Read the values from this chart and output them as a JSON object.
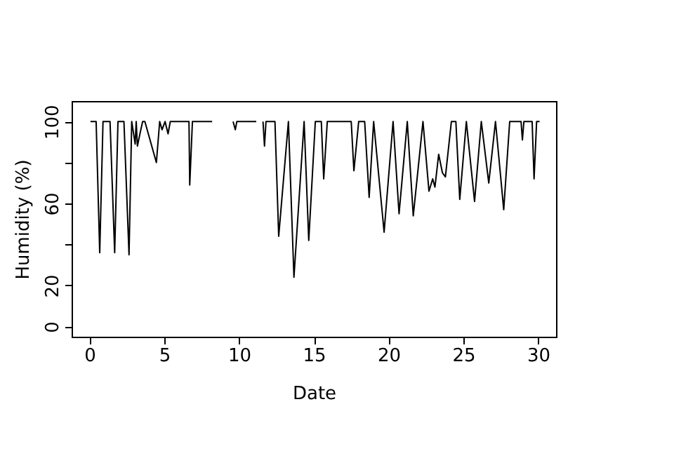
{
  "chart_data": {
    "type": "line",
    "xlabel": "Date",
    "ylabel": "Humidity (%)",
    "x": [
      0.06,
      0.44,
      0.68,
      0.9,
      1.37,
      1.68,
      1.9,
      2.3,
      2.64,
      2.82,
      3.05,
      3.12,
      3.2,
      3.4,
      3.55,
      3.7,
      4.47,
      4.69,
      4.85,
      5.05,
      5.25,
      5.4,
      5.55,
      6.65,
      6.7,
      6.88,
      8.2,
      8.9,
      9.6,
      9.75,
      9.85,
      11.15,
      11.4,
      11.6,
      11.7,
      11.8,
      12.4,
      12.65,
      13.3,
      13.67,
      14.35,
      14.66,
      15.1,
      15.5,
      15.66,
      15.9,
      17.5,
      17.68,
      18.0,
      18.4,
      18.7,
      19.0,
      19.7,
      20.3,
      20.7,
      21.25,
      21.65,
      22.3,
      22.7,
      22.95,
      23.1,
      23.35,
      23.6,
      23.8,
      24.2,
      24.5,
      24.76,
      25.2,
      25.75,
      26.2,
      26.7,
      27.15,
      27.7,
      28.1,
      28.86,
      28.95,
      29.05,
      29.6,
      29.73,
      29.9,
      30.1
    ],
    "series": [
      {
        "color": "#000000",
        "values": [
          100,
          100,
          36,
          100,
          100,
          36,
          100,
          100,
          35,
          100,
          89,
          100,
          88,
          95,
          100,
          100,
          80,
          100,
          96,
          100,
          94,
          100,
          100,
          100,
          69,
          100,
          100,
          null,
          100,
          96,
          100,
          100,
          null,
          100,
          88,
          100,
          100,
          44,
          100,
          24,
          100,
          42,
          100,
          100,
          72,
          100,
          100,
          76,
          100,
          100,
          63,
          100,
          46,
          100,
          55,
          100,
          54,
          100,
          66,
          72,
          68,
          84,
          75,
          73,
          100,
          100,
          62,
          100,
          61,
          100,
          70,
          100,
          57,
          100,
          100,
          91,
          100,
          100,
          72,
          100,
          100
        ]
      }
    ],
    "xlim": [
      -1.2,
      31.2
    ],
    "xticks": [
      0,
      5,
      10,
      15,
      20,
      25,
      30
    ],
    "ylim": [
      -5,
      110
    ],
    "yticks": [
      0,
      20,
      {
        "value": 40,
        "label": null
      },
      60,
      {
        "value": 80,
        "label": null
      },
      100
    ],
    "grid": false,
    "marker": "none",
    "line_style": "solid"
  }
}
